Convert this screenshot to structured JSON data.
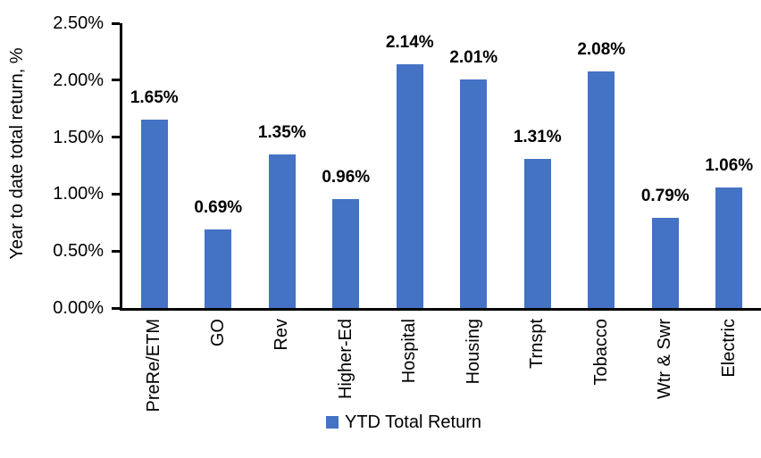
{
  "chart_data": {
    "type": "bar",
    "title": "",
    "ylabel": "Year to date total return, %",
    "xlabel": "",
    "categories": [
      "PreRe/ETM",
      "GO",
      "Rev",
      "Higher-Ed",
      "Hospital",
      "Housing",
      "Trnspt",
      "Tobacco",
      "Wtr & Swr",
      "Electric"
    ],
    "series": [
      {
        "name": "YTD Total Return",
        "values": [
          1.65,
          0.69,
          1.35,
          0.96,
          2.14,
          2.01,
          1.31,
          2.08,
          0.79,
          1.06
        ]
      }
    ],
    "data_labels": [
      "1.65%",
      "0.69%",
      "1.35%",
      "0.96%",
      "2.14%",
      "2.01%",
      "1.31%",
      "2.08%",
      "0.79%",
      "1.06%"
    ],
    "ylim": [
      0,
      2.5
    ],
    "yticks": [
      {
        "value": 0.0,
        "label": "0.00%"
      },
      {
        "value": 0.5,
        "label": "0.50%"
      },
      {
        "value": 1.0,
        "label": "1.00%"
      },
      {
        "value": 1.5,
        "label": "1.50%"
      },
      {
        "value": 2.0,
        "label": "2.00%"
      },
      {
        "value": 2.5,
        "label": "2.50%"
      }
    ],
    "grid": false,
    "bar_color": "#4472C4",
    "axis_color": "#000000",
    "legend": {
      "label": "YTD Total Return",
      "position": "bottom",
      "marker_color": "#4472C4"
    }
  }
}
